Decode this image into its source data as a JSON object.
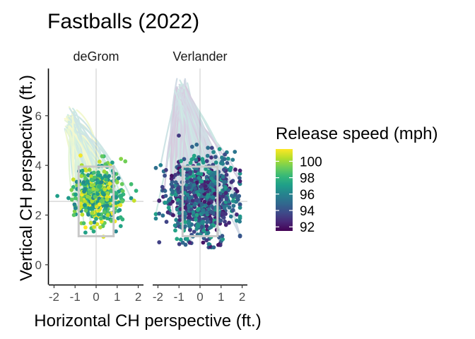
{
  "chart_data": {
    "type": "scatter",
    "title": "Fastballs (2022)",
    "xlabel": "Horizontal CH perspective (ft.)",
    "ylabel": "Vertical CH perspective (ft.)",
    "xlim": [
      -2.25,
      2.25
    ],
    "ylim": [
      -0.8,
      7.9
    ],
    "x_ticks": [
      -2,
      -1,
      0,
      1,
      2
    ],
    "x_tick_labels": [
      "-2",
      "-1",
      "0",
      "1",
      "2"
    ],
    "y_ticks": [
      0,
      2,
      4,
      6
    ],
    "y_tick_labels": [
      "0",
      "2",
      "4",
      "6"
    ],
    "grid": false,
    "reference_lines": {
      "x": 0,
      "y": 2.55
    },
    "strike_zone": {
      "x": [
        -0.83,
        0.83
      ],
      "y": [
        1.15,
        3.95
      ]
    },
    "panels": [
      {
        "name": "deGrom",
        "speed_range": [
          96,
          101.5
        ],
        "cluster": {
          "center": [
            0.05,
            2.75
          ],
          "sd": [
            0.58,
            0.62
          ],
          "n": 420
        },
        "release_point": [
          -1.2,
          5.7
        ],
        "trail_target": [
          0.1,
          2.5
        ]
      },
      {
        "name": "Verlander",
        "speed_range": [
          92,
          97.5
        ],
        "cluster": {
          "center": [
            0.05,
            2.65
          ],
          "sd": [
            0.85,
            0.85
          ],
          "n": 750
        },
        "release_point": [
          -0.9,
          6.8
        ],
        "trail_target": [
          0.1,
          2.8
        ]
      }
    ],
    "legend": {
      "title": "Release speed (mph)",
      "placement": "right",
      "min": 91.5,
      "max": 101.5,
      "ticks": [
        92,
        94,
        96,
        98,
        100
      ],
      "tick_labels": [
        "92",
        "94",
        "96",
        "98",
        "100"
      ],
      "colormap": "viridis"
    },
    "colors": {
      "viridis": [
        "#440154",
        "#482878",
        "#3e4a89",
        "#31688e",
        "#26828e",
        "#1f9e89",
        "#35b779",
        "#6ece58",
        "#b5de2b",
        "#fde725"
      ],
      "strike_zone": "#c8c8c8",
      "reference_line": "#c8c8c8",
      "axis": "#000000",
      "tick_label": "#4d4d4d"
    }
  }
}
